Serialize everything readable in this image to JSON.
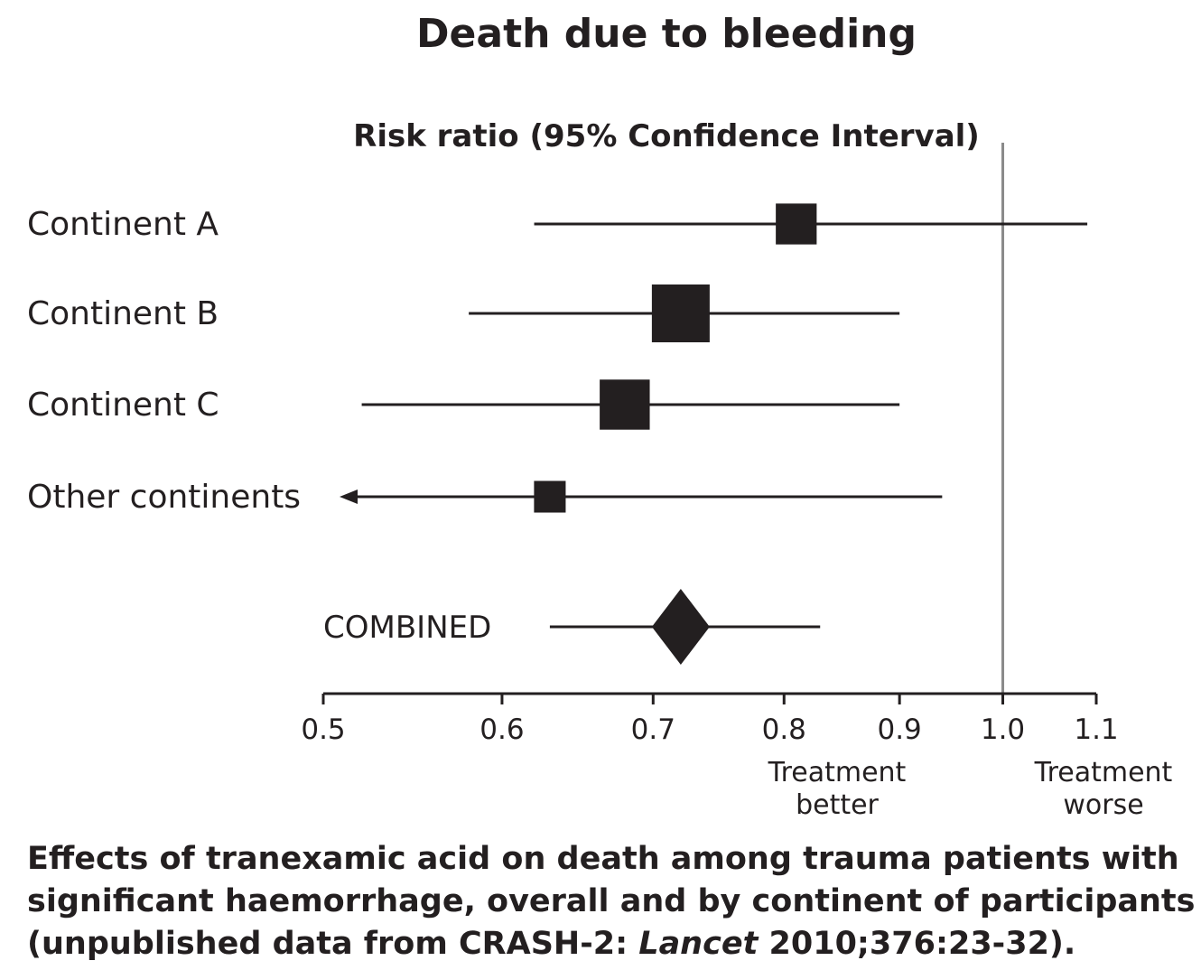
{
  "chart_data": {
    "type": "forest",
    "title": "Death due to bleeding",
    "subtitle": "Risk ratio (95% Confidence Interval)",
    "xlim": [
      0.5,
      1.1
    ],
    "x_ticks": [
      "0.5",
      "0.6",
      "0.7",
      "0.8",
      "0.9",
      "1.0",
      "1.1"
    ],
    "reference_line": 1.0,
    "direction_labels": {
      "better": [
        "Treatment",
        "better"
      ],
      "worse": [
        "Treatment",
        "worse"
      ]
    },
    "rows": [
      {
        "label": "Continent A",
        "estimate": 0.81,
        "lower": 0.62,
        "upper": 1.09,
        "weight": 0.5
      },
      {
        "label": "Continent B",
        "estimate": 0.72,
        "lower": 0.58,
        "upper": 0.9,
        "weight": 1.0
      },
      {
        "label": "Continent C",
        "estimate": 0.68,
        "lower": 0.52,
        "upper": 0.9,
        "weight": 0.75
      },
      {
        "label": "Other continents",
        "estimate": 0.63,
        "lower": 0.5,
        "upper": 0.94,
        "weight": 0.3,
        "lower_truncated": true
      }
    ],
    "combined": {
      "label": "COMBINED",
      "estimate": 0.72,
      "lower": 0.63,
      "upper": 0.83
    }
  },
  "caption": {
    "line1": "Effects of tranexamic acid on death among trauma patients with",
    "line2": "significant haemorrhage, overall and by continent of participants",
    "line3_before": "(unpublished data from CRASH-2: ",
    "line3_italic": "Lancet",
    "line3_after": " 2010;376:23-32)."
  },
  "colors": {
    "ink": "#231f20",
    "reference_line": "#8a8a8a"
  }
}
